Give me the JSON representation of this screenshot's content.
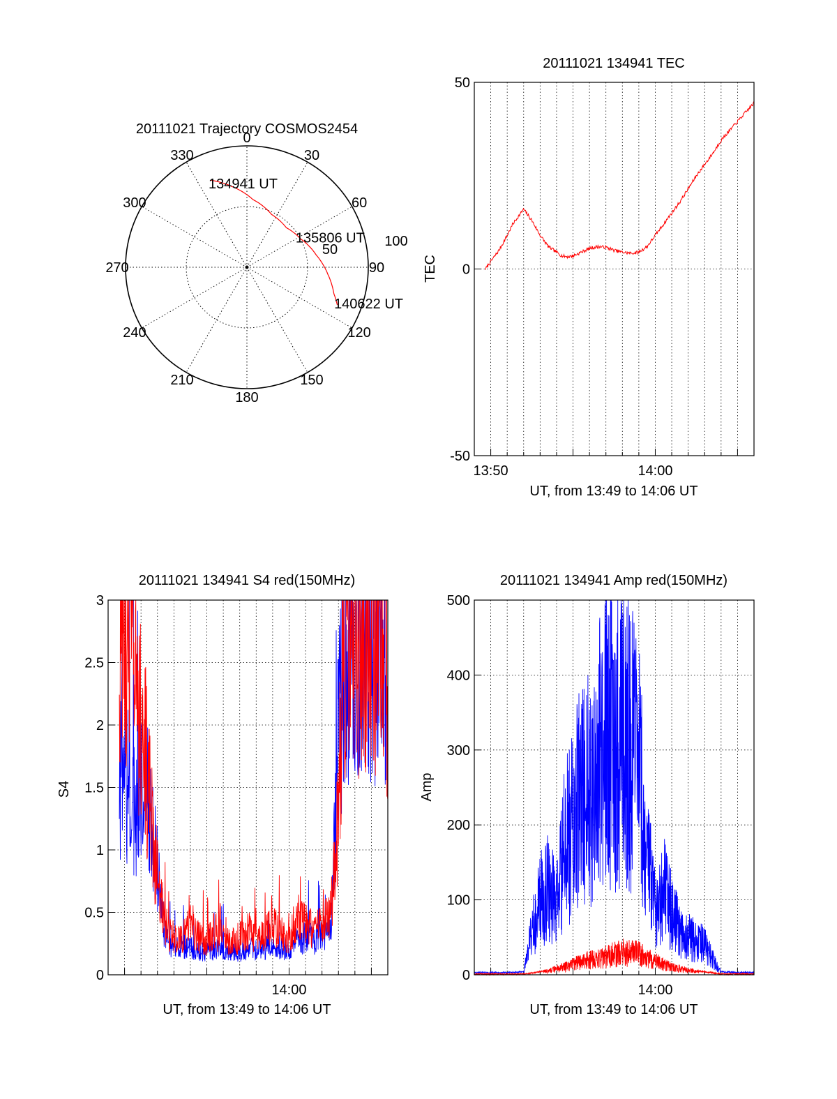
{
  "chart_data": [
    {
      "type": "polar",
      "title": "20111021 Trajectory COSMOS2454",
      "azimuth_labels": [
        "0",
        "30",
        "60",
        "90",
        "120",
        "150",
        "180",
        "210",
        "240",
        "270",
        "300",
        "330"
      ],
      "radial_labels": [
        "50",
        "100"
      ],
      "rlim": [
        0,
        100
      ],
      "grid": true,
      "annotations": [
        {
          "text": "134941 UT",
          "az": 337,
          "zen": 75
        },
        {
          "text": "135806 UT",
          "az": 60,
          "zen": 49
        },
        {
          "text": "140622 UT",
          "az": 112,
          "zen": 80
        }
      ],
      "trajectory": {
        "color": "#ff0000",
        "points": [
          {
            "az": 337.6,
            "zen": 77.5
          },
          {
            "az": 349,
            "zen": 68
          },
          {
            "az": 5,
            "zen": 56
          },
          {
            "az": 25,
            "zen": 48
          },
          {
            "az": 45,
            "zen": 46
          },
          {
            "az": 62,
            "zen": 50
          },
          {
            "az": 80,
            "zen": 58
          },
          {
            "az": 95,
            "zen": 67
          },
          {
            "az": 107,
            "zen": 75
          },
          {
            "az": 112.6,
            "zen": 80.6
          }
        ]
      }
    },
    {
      "type": "line",
      "title": "20111021 134941 TEC",
      "xlabel": "UT, from 13:49 to 14:06 UT",
      "ylabel": "TEC",
      "x_ticks": [
        "13:50",
        "14:00"
      ],
      "y_ticks": [
        "-50",
        "0",
        "50"
      ],
      "xlim": [
        "13:49:00",
        "14:06:00"
      ],
      "ylim": [
        -50,
        50
      ],
      "grid": true,
      "series": [
        {
          "color": "#ff0000",
          "x": [
            "13:49:41",
            "13:50:00",
            "13:50:30",
            "13:51:00",
            "13:51:20",
            "13:51:40",
            "13:52:00",
            "13:52:30",
            "13:53:00",
            "13:53:30",
            "13:54:00",
            "13:54:20",
            "13:54:40",
            "13:55:00",
            "13:55:30",
            "13:56:00",
            "13:56:30",
            "13:57:00",
            "13:57:30",
            "13:58:00",
            "13:58:30",
            "13:59:00",
            "13:59:30",
            "14:00:00",
            "14:00:30",
            "14:01:00",
            "14:01:30",
            "14:02:00",
            "14:02:30",
            "14:03:00",
            "14:03:30",
            "14:04:00",
            "14:04:30",
            "14:05:00",
            "14:05:30",
            "14:06:00"
          ],
          "values": [
            0,
            2,
            5,
            9,
            12,
            14,
            16,
            13,
            9,
            6,
            4.5,
            3.5,
            3.3,
            3.5,
            4.5,
            5.5,
            6,
            5.8,
            5,
            4.5,
            4.2,
            4.5,
            6,
            9,
            12,
            15,
            18,
            21.5,
            25,
            28,
            31,
            34.5,
            37,
            39.5,
            42,
            44.5
          ]
        }
      ]
    },
    {
      "type": "line",
      "title": "20111021 134941 S4 red(150MHz)",
      "xlabel": "UT, from 13:49 to 14:06 UT",
      "ylabel": "S4",
      "x_ticks": [
        "14:00"
      ],
      "y_ticks": [
        "0",
        "0.5",
        "1",
        "1.5",
        "2",
        "2.5",
        "3"
      ],
      "xlim": [
        "13:49:00",
        "14:06:00"
      ],
      "ylim": [
        0,
        3
      ],
      "grid": true,
      "series": [
        {
          "color": "#ff0000",
          "x": [
            "13:49:41",
            "13:50:10",
            "13:50:40",
            "13:51:10",
            "13:51:30",
            "13:52:00",
            "13:52:30",
            "13:53:00",
            "13:53:30",
            "13:54:00",
            "13:54:30",
            "13:55:00",
            "13:55:30",
            "13:56:00",
            "13:56:30",
            "13:57:00",
            "13:57:30",
            "13:58:00",
            "13:58:30",
            "13:59:00",
            "13:59:30",
            "14:00:00",
            "14:00:30",
            "14:01:00",
            "14:01:30",
            "14:02:00",
            "14:02:30",
            "14:02:50",
            "14:03:10",
            "14:03:30",
            "14:04:00",
            "14:04:30",
            "14:05:00",
            "14:05:30",
            "14:06:00"
          ],
          "values": [
            2.9,
            2.7,
            2.5,
            2.0,
            1.4,
            0.8,
            0.35,
            0.3,
            0.28,
            0.4,
            0.3,
            0.28,
            0.35,
            0.3,
            0.25,
            0.3,
            0.35,
            0.32,
            0.3,
            0.4,
            0.35,
            0.3,
            0.45,
            0.4,
            0.35,
            0.4,
            0.5,
            1.0,
            2.0,
            2.7,
            2.9,
            2.8,
            2.7,
            2.8,
            2.5
          ]
        },
        {
          "color": "#0000ff",
          "x": [
            "13:49:41",
            "13:50:10",
            "13:50:40",
            "13:51:10",
            "13:51:30",
            "13:52:00",
            "13:52:30",
            "13:53:00",
            "13:53:30",
            "13:54:00",
            "13:54:30",
            "13:55:00",
            "13:55:30",
            "13:56:00",
            "13:56:30",
            "13:57:00",
            "13:57:30",
            "13:58:00",
            "13:58:30",
            "13:59:00",
            "13:59:30",
            "14:00:00",
            "14:00:30",
            "14:01:00",
            "14:01:30",
            "14:02:00",
            "14:02:30",
            "14:02:50",
            "14:03:10",
            "14:03:30",
            "14:04:00",
            "14:04:30",
            "14:05:00",
            "14:05:30",
            "14:06:00"
          ],
          "values": [
            1.6,
            1.5,
            1.4,
            1.6,
            1.3,
            0.8,
            0.3,
            0.22,
            0.2,
            0.22,
            0.2,
            0.18,
            0.2,
            0.22,
            0.2,
            0.18,
            0.2,
            0.22,
            0.2,
            0.25,
            0.22,
            0.2,
            0.28,
            0.3,
            0.28,
            0.3,
            0.35,
            1.2,
            2.3,
            2.7,
            2.8,
            2.9,
            2.7,
            2.8,
            2.6
          ]
        }
      ]
    },
    {
      "type": "line",
      "title": "20111021 134941 Amp red(150MHz)",
      "xlabel": "UT, from 13:49 to 14:06 UT",
      "ylabel": "Amp",
      "x_ticks": [
        "14:00"
      ],
      "y_ticks": [
        "0",
        "100",
        "200",
        "300",
        "400",
        "500"
      ],
      "xlim": [
        "13:49:00",
        "14:06:00"
      ],
      "ylim": [
        0,
        500
      ],
      "grid": true,
      "series": [
        {
          "color": "#0000ff",
          "x": [
            "13:49:00",
            "13:50:00",
            "13:51:00",
            "13:52:00",
            "13:52:30",
            "13:53:00",
            "13:53:30",
            "13:54:00",
            "13:54:30",
            "13:55:00",
            "13:55:30",
            "13:56:00",
            "13:56:30",
            "13:57:00",
            "13:57:30",
            "13:58:00",
            "13:58:30",
            "13:59:00",
            "13:59:30",
            "14:00:00",
            "14:00:30",
            "14:01:00",
            "14:01:30",
            "14:02:00",
            "14:02:30",
            "14:03:00",
            "14:03:30",
            "14:04:00",
            "14:05:00",
            "14:06:00"
          ],
          "values": [
            2,
            2,
            2,
            3,
            60,
            100,
            120,
            90,
            170,
            200,
            240,
            250,
            280,
            330,
            300,
            340,
            310,
            270,
            150,
            90,
            120,
            80,
            60,
            50,
            45,
            40,
            20,
            3,
            2,
            2
          ]
        },
        {
          "color": "#ff0000",
          "x": [
            "13:49:00",
            "13:50:00",
            "13:51:00",
            "13:52:00",
            "13:53:00",
            "13:54:00",
            "13:55:00",
            "13:56:00",
            "13:57:00",
            "13:58:00",
            "13:59:00",
            "14:00:00",
            "14:01:00",
            "14:02:00",
            "14:03:00",
            "14:04:00",
            "14:05:00",
            "14:06:00"
          ],
          "values": [
            0,
            0,
            0,
            0,
            3,
            8,
            14,
            20,
            24,
            30,
            28,
            18,
            10,
            6,
            3,
            0,
            0,
            0
          ]
        }
      ]
    }
  ]
}
